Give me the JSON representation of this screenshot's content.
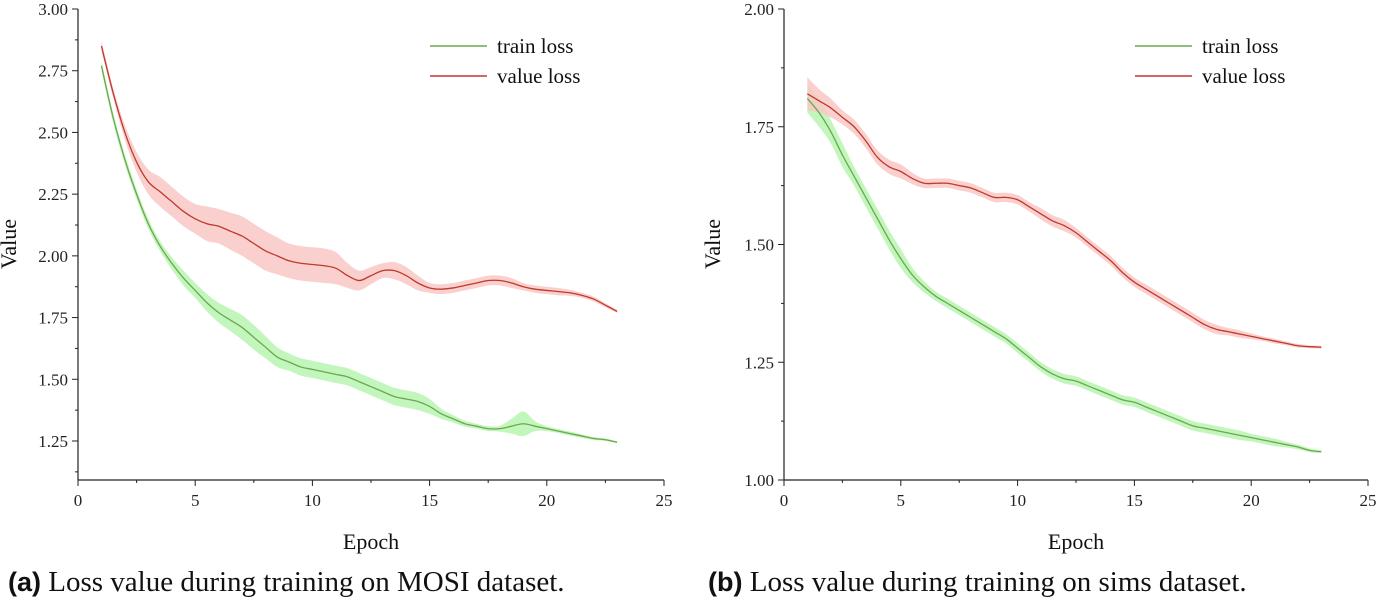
{
  "chart_data": [
    {
      "type": "line",
      "xlabel": "Epoch",
      "ylabel": "Value",
      "xlim": [
        0,
        25
      ],
      "ylim": [
        1.1,
        3.0
      ],
      "xticks": [
        "0",
        "5",
        "10",
        "15",
        "20",
        "25"
      ],
      "yticks": [
        "1.25",
        "1.50",
        "1.75",
        "2.00",
        "2.25",
        "2.50",
        "2.75",
        "3.00"
      ],
      "legend_position": "top-right",
      "caption_tag": "(a)",
      "caption_text": " Loss value during training on MOSI dataset.",
      "x": [
        1,
        1.5,
        2,
        2.5,
        3,
        3.5,
        4,
        4.5,
        5,
        5.5,
        6,
        6.5,
        7,
        7.5,
        8,
        8.5,
        9,
        9.5,
        10,
        10.5,
        11,
        11.5,
        12,
        12.5,
        13,
        13.5,
        14,
        14.5,
        15,
        15.5,
        16,
        16.5,
        17,
        17.5,
        18,
        18.5,
        19,
        19.5,
        20,
        20.5,
        21,
        21.5,
        22,
        22.5,
        23
      ],
      "series": [
        {
          "name": "train loss",
          "color": "#6aa84f",
          "band_color": "#b9f5b0",
          "values": [
            2.77,
            2.56,
            2.39,
            2.25,
            2.13,
            2.04,
            1.97,
            1.91,
            1.86,
            1.81,
            1.77,
            1.74,
            1.71,
            1.67,
            1.63,
            1.59,
            1.57,
            1.55,
            1.54,
            1.53,
            1.52,
            1.51,
            1.49,
            1.47,
            1.45,
            1.43,
            1.42,
            1.41,
            1.39,
            1.36,
            1.34,
            1.32,
            1.31,
            1.3,
            1.3,
            1.31,
            1.32,
            1.31,
            1.3,
            1.29,
            1.28,
            1.27,
            1.26,
            1.255,
            1.245
          ],
          "band": [
            0.02,
            0.02,
            0.02,
            0.02,
            0.02,
            0.02,
            0.025,
            0.03,
            0.03,
            0.035,
            0.04,
            0.045,
            0.05,
            0.05,
            0.045,
            0.04,
            0.035,
            0.035,
            0.035,
            0.035,
            0.035,
            0.035,
            0.035,
            0.035,
            0.035,
            0.035,
            0.035,
            0.035,
            0.03,
            0.02,
            0.015,
            0.012,
            0.01,
            0.01,
            0.012,
            0.03,
            0.05,
            0.02,
            0.01,
            0.008,
            0.008,
            0.007,
            0.006,
            0.005,
            0.004
          ]
        },
        {
          "name": "value loss",
          "color": "#c0392b",
          "band_color": "#f9c8c6",
          "values": [
            2.85,
            2.66,
            2.5,
            2.38,
            2.3,
            2.26,
            2.22,
            2.18,
            2.15,
            2.13,
            2.12,
            2.1,
            2.08,
            2.05,
            2.02,
            2.0,
            1.98,
            1.97,
            1.965,
            1.96,
            1.95,
            1.92,
            1.9,
            1.92,
            1.94,
            1.94,
            1.92,
            1.89,
            1.87,
            1.865,
            1.87,
            1.88,
            1.89,
            1.9,
            1.9,
            1.89,
            1.875,
            1.865,
            1.86,
            1.855,
            1.85,
            1.84,
            1.825,
            1.8,
            1.775
          ],
          "band": [
            0.02,
            0.02,
            0.03,
            0.04,
            0.05,
            0.06,
            0.06,
            0.06,
            0.06,
            0.07,
            0.07,
            0.075,
            0.08,
            0.08,
            0.08,
            0.075,
            0.07,
            0.07,
            0.07,
            0.07,
            0.065,
            0.05,
            0.04,
            0.035,
            0.03,
            0.035,
            0.035,
            0.03,
            0.02,
            0.02,
            0.02,
            0.02,
            0.02,
            0.02,
            0.02,
            0.02,
            0.015,
            0.015,
            0.015,
            0.015,
            0.012,
            0.01,
            0.01,
            0.008,
            0.006
          ]
        }
      ]
    },
    {
      "type": "line",
      "xlabel": "Epoch",
      "ylabel": "Value",
      "xlim": [
        0,
        25
      ],
      "ylim": [
        1.0,
        2.0
      ],
      "xticks": [
        "0",
        "5",
        "10",
        "15",
        "20",
        "25"
      ],
      "yticks": [
        "1.00",
        "1.25",
        "1.50",
        "1.75",
        "2.00"
      ],
      "legend_position": "top-right",
      "caption_tag": "(b)",
      "caption_text": " Loss value during training on sims dataset.",
      "x": [
        1,
        1.5,
        2,
        2.5,
        3,
        3.5,
        4,
        4.5,
        5,
        5.5,
        6,
        6.5,
        7,
        7.5,
        8,
        8.5,
        9,
        9.5,
        10,
        10.5,
        11,
        11.5,
        12,
        12.5,
        13,
        13.5,
        14,
        14.5,
        15,
        15.5,
        16,
        16.5,
        17,
        17.5,
        18,
        18.5,
        19,
        19.5,
        20,
        20.5,
        21,
        21.5,
        22,
        22.5,
        23
      ],
      "series": [
        {
          "name": "train loss",
          "color": "#6aa84f",
          "band_color": "#b9f5b0",
          "values": [
            1.81,
            1.78,
            1.74,
            1.69,
            1.645,
            1.6,
            1.555,
            1.51,
            1.47,
            1.435,
            1.41,
            1.39,
            1.375,
            1.36,
            1.345,
            1.33,
            1.315,
            1.3,
            1.28,
            1.26,
            1.24,
            1.225,
            1.215,
            1.21,
            1.2,
            1.19,
            1.18,
            1.17,
            1.165,
            1.155,
            1.145,
            1.135,
            1.125,
            1.115,
            1.11,
            1.105,
            1.1,
            1.095,
            1.09,
            1.085,
            1.08,
            1.075,
            1.07,
            1.063,
            1.06
          ],
          "band": [
            0.03,
            0.03,
            0.025,
            0.025,
            0.02,
            0.02,
            0.02,
            0.02,
            0.02,
            0.015,
            0.012,
            0.01,
            0.01,
            0.01,
            0.01,
            0.01,
            0.01,
            0.01,
            0.01,
            0.01,
            0.01,
            0.01,
            0.01,
            0.01,
            0.01,
            0.01,
            0.01,
            0.01,
            0.01,
            0.01,
            0.01,
            0.01,
            0.01,
            0.01,
            0.01,
            0.01,
            0.01,
            0.01,
            0.008,
            0.008,
            0.008,
            0.006,
            0.005,
            0.004,
            0.003
          ]
        },
        {
          "name": "value loss",
          "color": "#c0392b",
          "band_color": "#f9c8c6",
          "values": [
            1.82,
            1.805,
            1.79,
            1.77,
            1.75,
            1.72,
            1.685,
            1.665,
            1.655,
            1.64,
            1.63,
            1.63,
            1.63,
            1.625,
            1.62,
            1.61,
            1.6,
            1.6,
            1.595,
            1.58,
            1.565,
            1.55,
            1.54,
            1.525,
            1.505,
            1.485,
            1.465,
            1.44,
            1.42,
            1.405,
            1.39,
            1.375,
            1.36,
            1.345,
            1.33,
            1.32,
            1.315,
            1.31,
            1.305,
            1.3,
            1.295,
            1.29,
            1.285,
            1.283,
            1.282
          ],
          "band": [
            0.035,
            0.025,
            0.02,
            0.015,
            0.015,
            0.015,
            0.015,
            0.015,
            0.015,
            0.012,
            0.01,
            0.01,
            0.01,
            0.01,
            0.01,
            0.01,
            0.01,
            0.01,
            0.01,
            0.01,
            0.012,
            0.012,
            0.012,
            0.01,
            0.01,
            0.01,
            0.01,
            0.01,
            0.01,
            0.01,
            0.01,
            0.01,
            0.01,
            0.01,
            0.01,
            0.01,
            0.008,
            0.008,
            0.006,
            0.005,
            0.005,
            0.004,
            0.004,
            0.003,
            0.003
          ]
        }
      ]
    }
  ]
}
